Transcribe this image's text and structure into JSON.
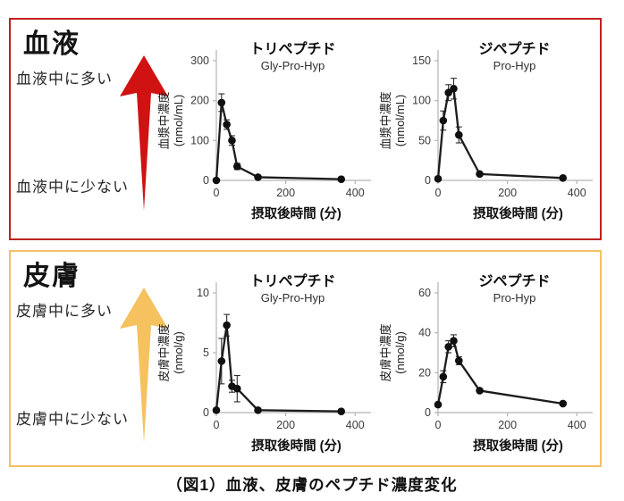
{
  "caption": "（図1）血液、皮膚のペプチド濃度変化",
  "sections": [
    {
      "id": "blood",
      "title": "血液",
      "high_label": "血液中に多い",
      "low_label": "血液中に少ない",
      "border_color": "#c0211e",
      "arrow_color": "#d01212"
    },
    {
      "id": "skin",
      "title": "皮膚",
      "high_label": "皮膚中に多い",
      "low_label": "皮膚中に少ない",
      "border_color": "#f2c164",
      "arrow_color": "#f5c25f"
    }
  ],
  "chart_data": [
    {
      "id": "blood-tripeptide",
      "section": "blood",
      "type": "line",
      "title": "トリペプチド",
      "subtitle": "Gly-Pro-Hyp",
      "ylabel": "血漿中濃度",
      "yunit": "(nmol/mL)",
      "xlabel": "摂取後時間 (分)",
      "x": [
        0,
        15,
        30,
        45,
        60,
        120,
        360
      ],
      "y": [
        0,
        195,
        140,
        100,
        35,
        8,
        3
      ],
      "yerr": [
        0,
        22,
        12,
        12,
        8,
        0,
        0
      ],
      "ylim": [
        0,
        300
      ],
      "yticks": [
        0,
        100,
        200,
        300
      ],
      "xlim": [
        0,
        420
      ],
      "xticks": [
        0,
        200,
        400
      ]
    },
    {
      "id": "blood-dipeptide",
      "section": "blood",
      "type": "line",
      "title": "ジペプチド",
      "subtitle": "Pro-Hyp",
      "ylabel": "血漿中濃度",
      "yunit": "(nmol/mL)",
      "xlabel": "摂取後時間 (分)",
      "x": [
        0,
        15,
        30,
        45,
        60,
        120,
        360
      ],
      "y": [
        2,
        75,
        110,
        115,
        57,
        8,
        3
      ],
      "yerr": [
        0,
        12,
        10,
        13,
        10,
        0,
        0
      ],
      "ylim": [
        0,
        150
      ],
      "yticks": [
        0,
        50,
        100,
        150
      ],
      "xlim": [
        0,
        420
      ],
      "xticks": [
        0,
        200,
        400
      ]
    },
    {
      "id": "skin-tripeptide",
      "section": "skin",
      "type": "line",
      "title": "トリペプチド",
      "subtitle": "Gly-Pro-Hyp",
      "ylabel": "皮膚中濃度",
      "yunit": "(nmol/g)",
      "xlabel": "摂取後時間 (分)",
      "x": [
        0,
        15,
        30,
        45,
        60,
        120,
        360
      ],
      "y": [
        0.2,
        4.3,
        7.3,
        2.2,
        2.0,
        0.2,
        0.1
      ],
      "yerr": [
        0,
        1.9,
        0.9,
        0.5,
        1.1,
        0,
        0
      ],
      "ylim": [
        0,
        10
      ],
      "yticks": [
        0,
        5,
        10
      ],
      "xlim": [
        0,
        420
      ],
      "xticks": [
        0,
        200,
        400
      ]
    },
    {
      "id": "skin-dipeptide",
      "section": "skin",
      "type": "line",
      "title": "ジペプチド",
      "subtitle": "Pro-Hyp",
      "ylabel": "皮膚中濃度",
      "yunit": "(nmol/g)",
      "xlabel": "摂取後時間 (分)",
      "x": [
        0,
        15,
        30,
        45,
        60,
        120,
        360
      ],
      "y": [
        4,
        18,
        33,
        36,
        26,
        11,
        4.5
      ],
      "yerr": [
        1,
        3,
        3,
        3,
        2,
        0,
        0
      ],
      "ylim": [
        0,
        60
      ],
      "yticks": [
        0,
        20,
        40,
        60
      ],
      "xlim": [
        0,
        420
      ],
      "xticks": [
        0,
        200,
        400
      ]
    }
  ]
}
